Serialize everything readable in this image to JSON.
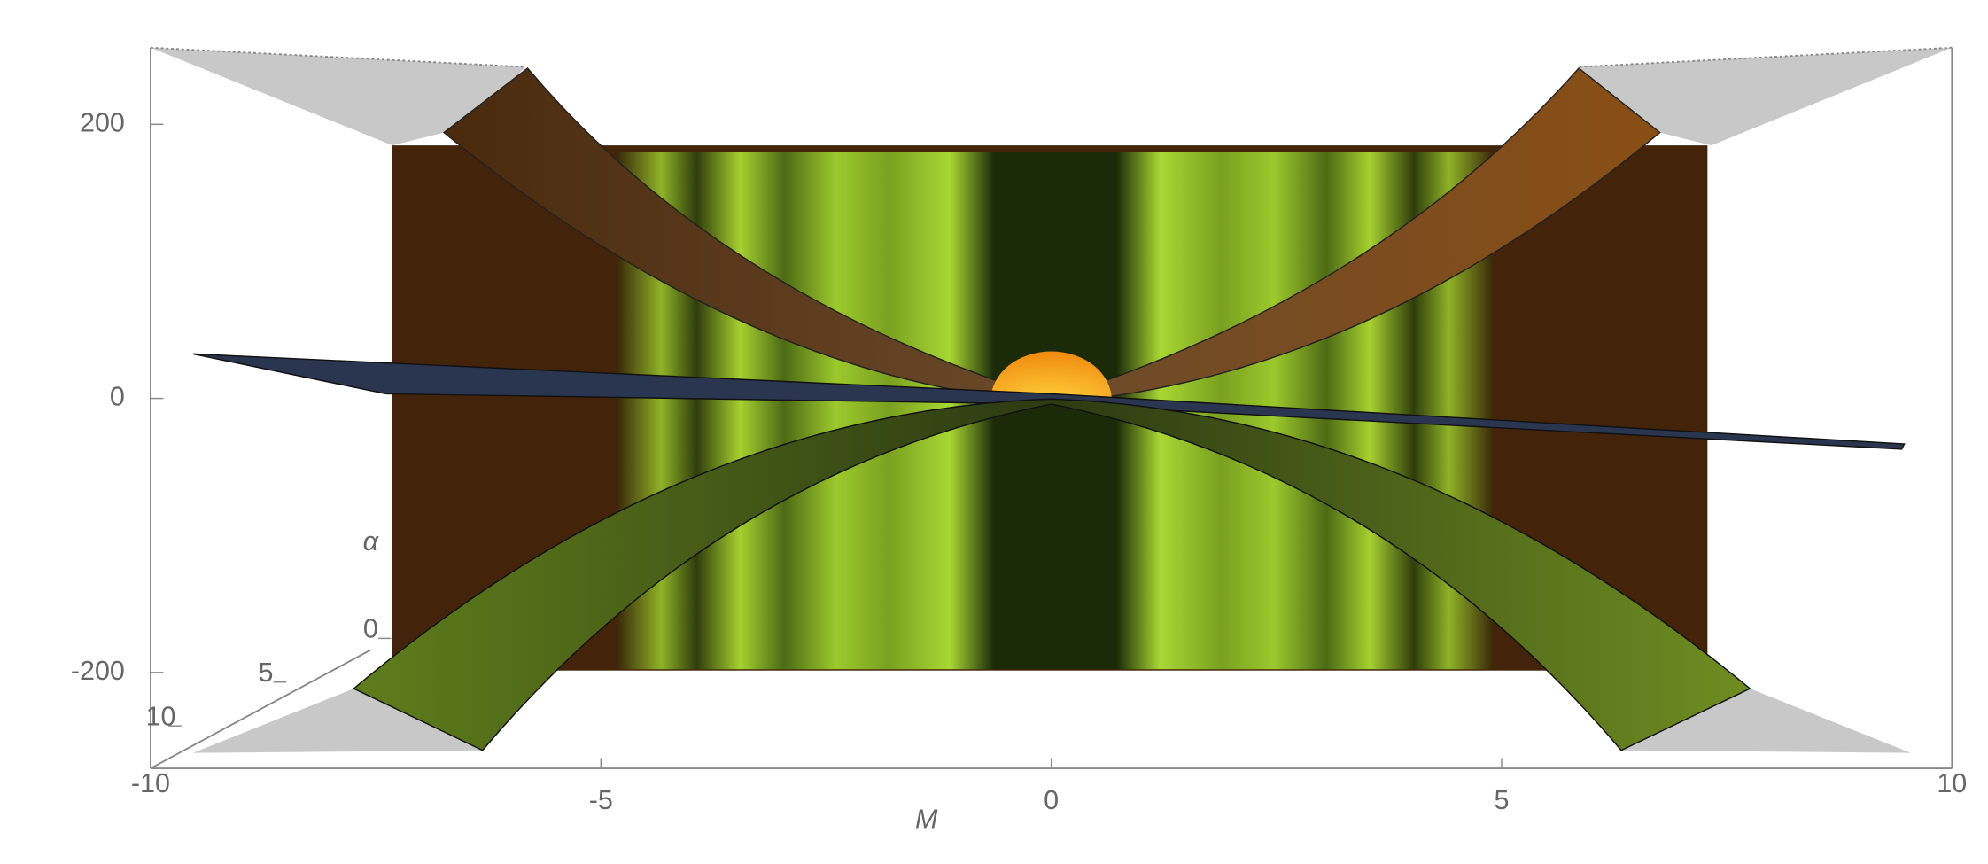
{
  "chart_data": {
    "type": "surface3d",
    "xlabel": "M",
    "ylabel": "α",
    "xlim": [
      -10,
      10
    ],
    "xticks": [
      -10,
      -5,
      0,
      5,
      10
    ],
    "ylim": [
      0,
      10
    ],
    "yticks": [
      0,
      5,
      10
    ],
    "zlim": [
      -270,
      256
    ],
    "zticks": [
      -200,
      0,
      200
    ]
  }
}
